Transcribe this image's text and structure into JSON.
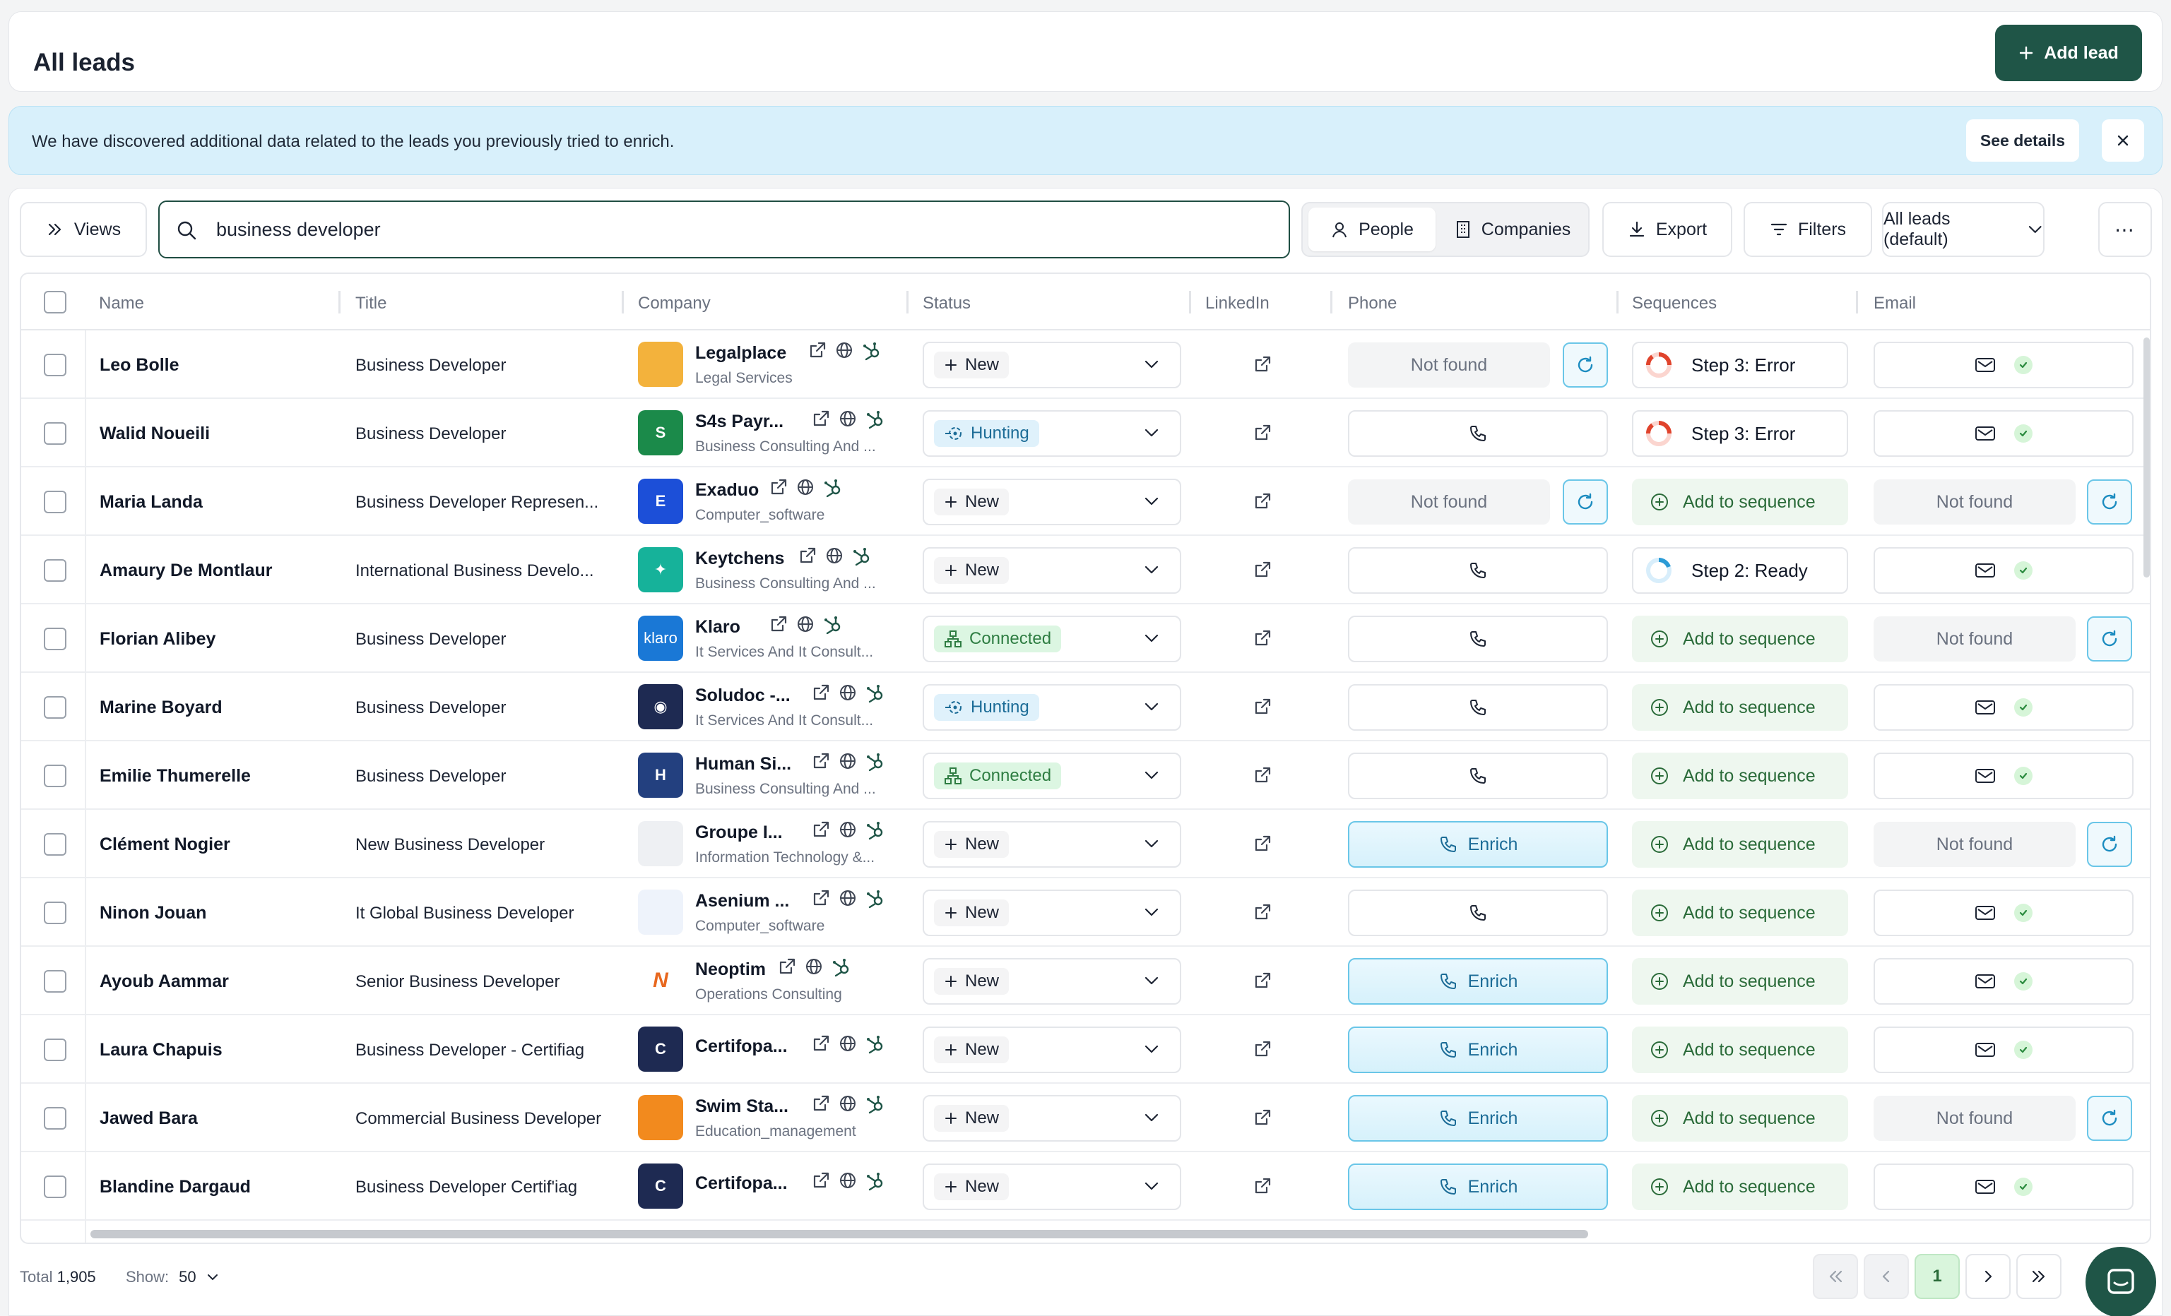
{
  "header": {
    "title": "All leads",
    "add_lead_label": "Add lead"
  },
  "banner": {
    "text": "We have discovered additional data related to the leads you previously tried to enrich.",
    "see_details_label": "See details"
  },
  "toolbar": {
    "views_label": "Views",
    "search_value": "business developer",
    "people_label": "People",
    "companies_label": "Companies",
    "export_label": "Export",
    "filters_label": "Filters",
    "view_select_label": "All leads (default)",
    "more_label": "⋯"
  },
  "table": {
    "columns": [
      "Name",
      "Title",
      "Company",
      "Status",
      "LinkedIn",
      "Phone",
      "Sequences",
      "Email"
    ],
    "labels": {
      "not_found": "Not found",
      "enrich": "Enrich",
      "add_to_sequence": "Add to sequence"
    },
    "rows": [
      {
        "name": "Leo Bolle",
        "title": "Business Developer",
        "company": "Legalplace",
        "industry": "Legal Services",
        "logo_color": "#f3b23c",
        "logo_text": "",
        "status": "New",
        "phone": "not_found",
        "sequence": "Step 3: Error",
        "seq_kind": "error",
        "email": "ok"
      },
      {
        "name": "Walid Noueili",
        "title": "Business Developer",
        "company": "S4s Payr...",
        "industry": "Business Consulting And ...",
        "logo_color": "#1b8a4a",
        "logo_text": "S",
        "status": "Hunting",
        "phone": "icon",
        "sequence": "Step 3: Error",
        "seq_kind": "error",
        "email": "ok"
      },
      {
        "name": "Maria Landa",
        "title": "Business Developer Represen...",
        "company": "Exaduo",
        "industry": "Computer_software",
        "logo_color": "#1c4fd8",
        "logo_text": "E",
        "status": "New",
        "phone": "not_found",
        "sequence": "Add to sequence",
        "seq_kind": "add",
        "email": "not_found"
      },
      {
        "name": "Amaury De Montlaur",
        "title": "International Business Develo...",
        "company": "Keytchens",
        "industry": "Business Consulting And ...",
        "logo_color": "#16b29a",
        "logo_text": "✦",
        "status": "New",
        "phone": "icon",
        "sequence": "Step 2: Ready",
        "seq_kind": "ready",
        "email": "ok"
      },
      {
        "name": "Florian Alibey",
        "title": "Business Developer",
        "company": "Klaro",
        "industry": "It Services And It Consult...",
        "logo_color": "#1a78d6",
        "logo_text": "klaro",
        "status": "Connected",
        "phone": "icon",
        "sequence": "Add to sequence",
        "seq_kind": "add",
        "email": "not_found"
      },
      {
        "name": "Marine Boyard",
        "title": "Business Developer",
        "company": "Soludoc -...",
        "industry": "It Services And It Consult...",
        "logo_color": "#1e2a52",
        "logo_text": "◉",
        "status": "Hunting",
        "phone": "icon",
        "sequence": "Add to sequence",
        "seq_kind": "add",
        "email": "ok"
      },
      {
        "name": "Emilie Thumerelle",
        "title": "Business Developer",
        "company": "Human Si...",
        "industry": "Business Consulting And ...",
        "logo_color": "#23407f",
        "logo_text": "H",
        "status": "Connected",
        "phone": "icon",
        "sequence": "Add to sequence",
        "seq_kind": "add",
        "email": "ok"
      },
      {
        "name": "Clément Nogier",
        "title": "New Business Developer",
        "company": "Groupe I...",
        "industry": "Information Technology &...",
        "logo_color": "#eef0f3",
        "logo_text": "",
        "status": "New",
        "phone": "enrich",
        "sequence": "Add to sequence",
        "seq_kind": "add",
        "email": "not_found"
      },
      {
        "name": "Ninon Jouan",
        "title": "It Global Business Developer",
        "company": "Asenium ...",
        "industry": "Computer_software",
        "logo_color": "#eef3fb",
        "logo_text": "",
        "status": "New",
        "phone": "icon",
        "sequence": "Add to sequence",
        "seq_kind": "add",
        "email": "ok"
      },
      {
        "name": "Ayoub Aammar",
        "title": "Senior Business Developer",
        "company": "Neoptim",
        "industry": "Operations Consulting",
        "logo_color": "#ffffff",
        "logo_text": "N",
        "status": "New",
        "phone": "enrich",
        "sequence": "Add to sequence",
        "seq_kind": "add",
        "email": "ok"
      },
      {
        "name": "Laura Chapuis",
        "title": "Business Developer - Certifiag",
        "company": "Certifopa...",
        "industry": "",
        "logo_color": "#1e2a52",
        "logo_text": "C",
        "status": "New",
        "phone": "enrich",
        "sequence": "Add to sequence",
        "seq_kind": "add",
        "email": "ok"
      },
      {
        "name": "Jawed Bara",
        "title": "Commercial Business Developer",
        "company": "Swim Sta...",
        "industry": "Education_management",
        "logo_color": "#f28a1e",
        "logo_text": "",
        "status": "New",
        "phone": "enrich",
        "sequence": "Add to sequence",
        "seq_kind": "add",
        "email": "not_found"
      },
      {
        "name": "Blandine Dargaud",
        "title": "Business Developer Certif'iag",
        "company": "Certifopa...",
        "industry": "",
        "logo_color": "#1e2a52",
        "logo_text": "C",
        "status": "New",
        "phone": "enrich",
        "sequence": "Add to sequence",
        "seq_kind": "add",
        "email": "ok"
      }
    ]
  },
  "footer": {
    "total_label": "Total",
    "total_value": "1,905",
    "show_label": "Show:",
    "show_value": "50",
    "current_page": "1"
  },
  "colors": {
    "primary": "#1f5547",
    "accent_blue": "#1c6c97",
    "success": "#2a6b39"
  }
}
